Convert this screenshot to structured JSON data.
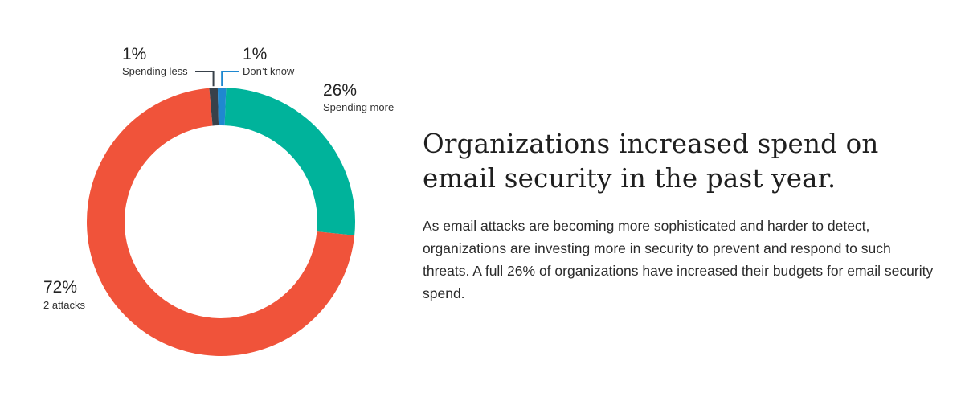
{
  "chart_data": {
    "type": "pie",
    "variant": "donut",
    "slices": [
      {
        "pct_label": "26%",
        "caption": "Spending more",
        "value": 26,
        "color": "#00b39b"
      },
      {
        "pct_label": "72%",
        "caption": "2 attacks",
        "value": 72,
        "color": "#f0533a"
      },
      {
        "pct_label": "1%",
        "caption": "Spending less",
        "value": 1,
        "color": "#38414a"
      },
      {
        "pct_label": "1%",
        "caption": "Don’t know",
        "value": 1,
        "color": "#1f88d0"
      }
    ]
  },
  "text": {
    "headline_line1": "Organizations increased spend on",
    "headline_line2": "email security in the past year.",
    "body": "As email attacks are becoming more sophisticated and harder to detect, organizations are investing more in security to prevent and respond to such threats. A full 26% of organizations have increased their budgets for email security spend."
  }
}
